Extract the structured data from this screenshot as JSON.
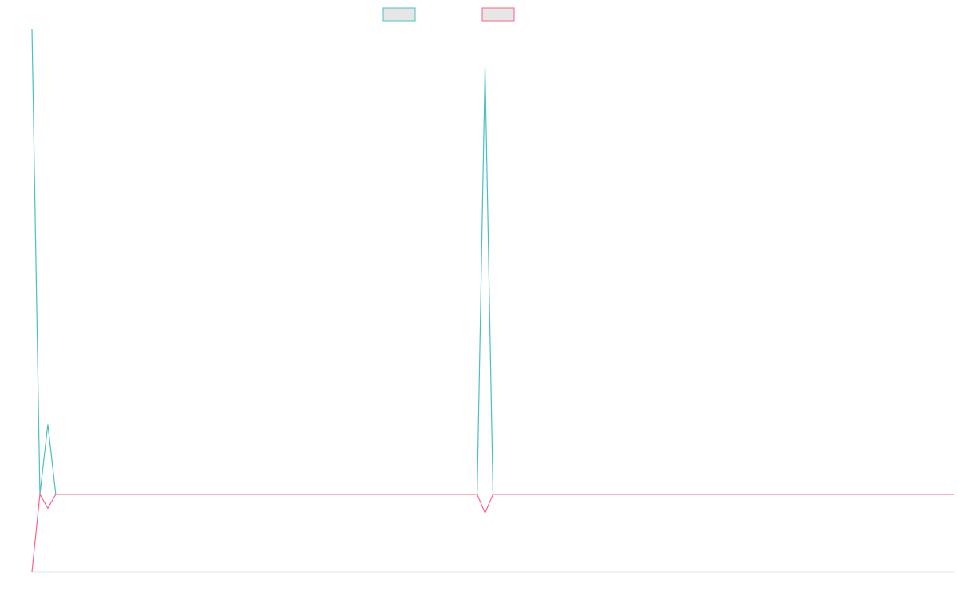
{
  "chart_data": {
    "type": "line",
    "title": "",
    "xlabel": "",
    "ylabel": "",
    "x": [
      0,
      1,
      2,
      3,
      4,
      5,
      6,
      7,
      8,
      9,
      10,
      11,
      12,
      13,
      14,
      15,
      16,
      17,
      18,
      19,
      20,
      21,
      22,
      23,
      24,
      25,
      26,
      27,
      28,
      29,
      30,
      31,
      32,
      33,
      34,
      35,
      36,
      37,
      38,
      39,
      40,
      41,
      42,
      43,
      44,
      45,
      46,
      47,
      48,
      49,
      50,
      51,
      52,
      53,
      54,
      55,
      56,
      57,
      58,
      59,
      60,
      61,
      62,
      63,
      64,
      65,
      66,
      67,
      68,
      69,
      70,
      71,
      72,
      73,
      74,
      75,
      76,
      77,
      78,
      79,
      80,
      81,
      82,
      83,
      84,
      85,
      86,
      87,
      88,
      89,
      90,
      91,
      92,
      93,
      94,
      95,
      96,
      97,
      98,
      99,
      100,
      101,
      102,
      103,
      104,
      105,
      106,
      107,
      108,
      109,
      110,
      111,
      112,
      113,
      114,
      115,
      116
    ],
    "ylim": [
      -100,
      600
    ],
    "series": [
      {
        "color": "#4bc0c0",
        "values": [
          600,
          0,
          90,
          0,
          0,
          0,
          0,
          0,
          0,
          0,
          0,
          0,
          0,
          0,
          0,
          0,
          0,
          0,
          0,
          0,
          0,
          0,
          0,
          0,
          0,
          0,
          0,
          0,
          0,
          0,
          0,
          0,
          0,
          0,
          0,
          0,
          0,
          0,
          0,
          0,
          0,
          0,
          0,
          0,
          0,
          0,
          0,
          0,
          0,
          0,
          0,
          0,
          0,
          0,
          0,
          0,
          0,
          550,
          0,
          0,
          0,
          0,
          0,
          0,
          0,
          0,
          0,
          0,
          0,
          0,
          0,
          0,
          0,
          0,
          0,
          0,
          0,
          0,
          0,
          0,
          0,
          0,
          0,
          0,
          0,
          0,
          0,
          0,
          0,
          0,
          0,
          0,
          0,
          0,
          0,
          0,
          0,
          0,
          0,
          0,
          0,
          0,
          0,
          0,
          0,
          0,
          0,
          0,
          0,
          0,
          0,
          0,
          0,
          0,
          0,
          0,
          0
        ]
      },
      {
        "color": "#ff6384",
        "values": [
          -100,
          0,
          -18,
          0,
          0,
          0,
          0,
          0,
          0,
          0,
          0,
          0,
          0,
          0,
          0,
          0,
          0,
          0,
          0,
          0,
          0,
          0,
          0,
          0,
          0,
          0,
          0,
          0,
          0,
          0,
          0,
          0,
          0,
          0,
          0,
          0,
          0,
          0,
          0,
          0,
          0,
          0,
          0,
          0,
          0,
          0,
          0,
          0,
          0,
          0,
          0,
          0,
          0,
          0,
          0,
          0,
          0,
          -24,
          0,
          0,
          0,
          0,
          0,
          0,
          0,
          0,
          0,
          0,
          0,
          0,
          0,
          0,
          0,
          0,
          0,
          0,
          0,
          0,
          0,
          0,
          0,
          0,
          0,
          0,
          0,
          0,
          0,
          0,
          0,
          0,
          0,
          0,
          0,
          0,
          0,
          0,
          0,
          0,
          0,
          0,
          0,
          0,
          0,
          0,
          0,
          0,
          0,
          0,
          0,
          0,
          0,
          0,
          0,
          0,
          0,
          0,
          0
        ]
      }
    ],
    "legend": {
      "position": "top",
      "swatch_fill": "#e6e6e6"
    },
    "grid": false
  }
}
